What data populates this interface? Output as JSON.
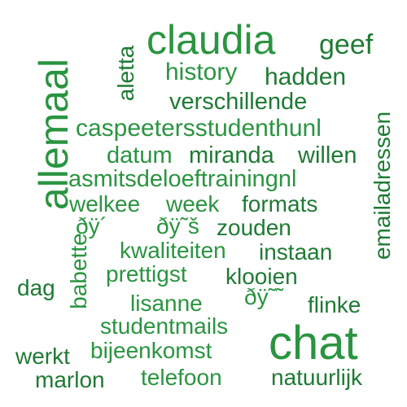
{
  "colors": {
    "background": "#ffffff",
    "word_dark": "#1e7a34",
    "word_mid": "#2a9440",
    "word_light": "#33a64a"
  },
  "words": {
    "claudia": "claudia",
    "geef": "geef",
    "aletta": "aletta",
    "history": "history",
    "hadden": "hadden",
    "allemaal": "allemaal",
    "verschillende": "verschillende",
    "emailadressen": "emailadressen",
    "caspeetersstudenthunl": "caspeetersstudenthunl",
    "datum": "datum",
    "miranda": "miranda",
    "willen": "willen",
    "asmitsdeloeftrainingnl": "asmitsdeloeftrainingnl",
    "welkee": "welkee",
    "week": "week",
    "formats": "formats",
    "emoji1": "ðÿ´",
    "emoji2": "ðÿ˜š",
    "zouden": "zouden",
    "babette": "babette",
    "kwaliteiten": "kwaliteiten",
    "instaan": "instaan",
    "prettigst": "prettigst",
    "klooien": "klooien",
    "dag": "dag",
    "emoji3": "ðÿ˜˜",
    "lisanne": "lisanne",
    "flinke": "flinke",
    "studentmails": "studentmails",
    "chat": "chat",
    "werkt": "werkt",
    "bijeenkomst": "bijeenkomst",
    "marlon": "marlon",
    "telefoon": "telefoon",
    "natuurlijk": "natuurlijk"
  }
}
